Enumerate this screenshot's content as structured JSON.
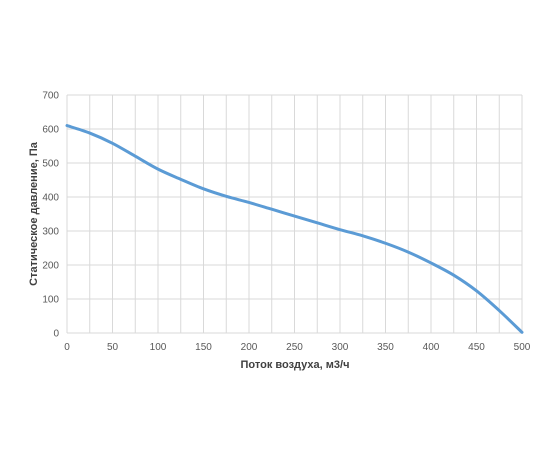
{
  "chart_data": {
    "type": "line",
    "title": "",
    "xlabel": "Поток воздуха, м3/ч",
    "ylabel": "Статическое давление, Па",
    "xlim": [
      0,
      500
    ],
    "ylim": [
      0,
      700
    ],
    "x_ticks": [
      0,
      50,
      100,
      150,
      200,
      250,
      300,
      350,
      400,
      450,
      500
    ],
    "y_ticks": [
      0,
      100,
      200,
      300,
      400,
      500,
      600,
      700
    ],
    "x_minor_step": 25,
    "grid": true,
    "legend": "none",
    "line_color": "#5b9bd5",
    "grid_color": "#d9d9d9",
    "series": [
      {
        "x": [
          0,
          25,
          50,
          75,
          100,
          125,
          150,
          175,
          200,
          225,
          250,
          275,
          300,
          325,
          350,
          375,
          400,
          425,
          450,
          475,
          500
        ],
        "values": [
          610,
          588,
          558,
          520,
          482,
          452,
          424,
          402,
          384,
          364,
          344,
          324,
          304,
          286,
          264,
          238,
          206,
          170,
          124,
          66,
          2
        ]
      }
    ]
  }
}
